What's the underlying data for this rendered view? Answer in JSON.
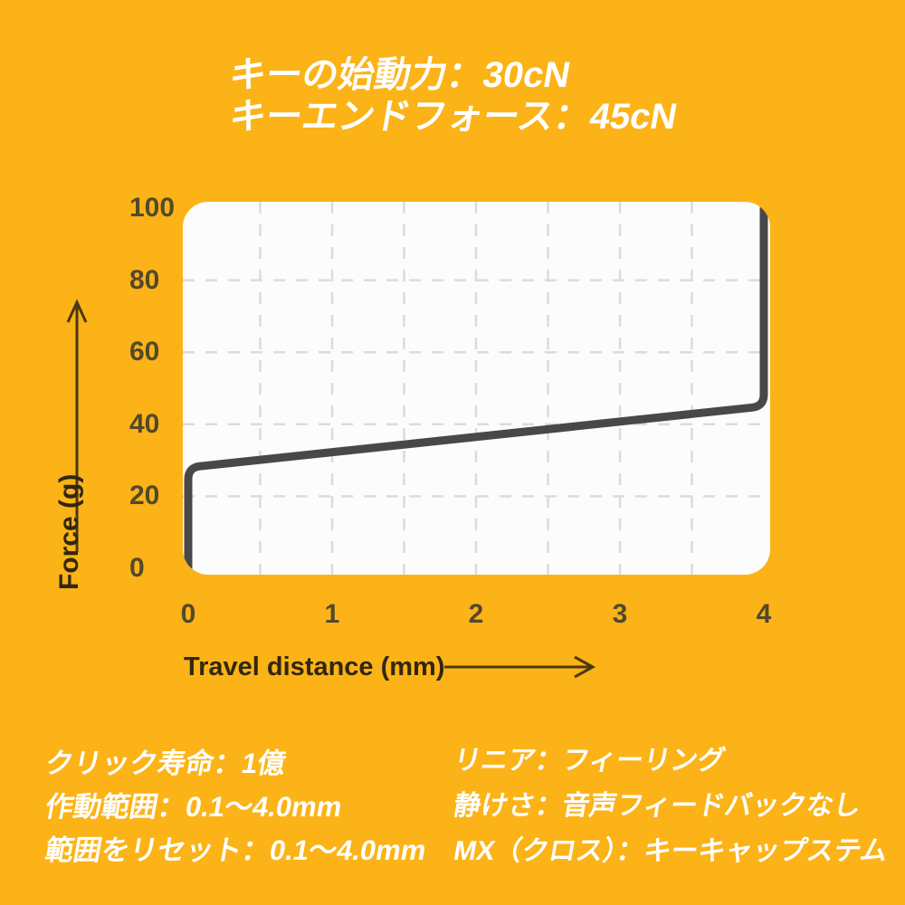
{
  "title": {
    "line1": "キーの始動力：30cN",
    "line2": "キーエンドフォース：45cN"
  },
  "chart_data": {
    "type": "line",
    "xlabel": "Travel distance (mm)",
    "ylabel": "Force (g)",
    "xlim": [
      0,
      4
    ],
    "ylim": [
      0,
      100
    ],
    "x_ticks": [
      0,
      1,
      2,
      3,
      4
    ],
    "y_ticks": [
      0,
      20,
      40,
      60,
      80,
      100
    ],
    "grid": {
      "x_start": 0.5,
      "x_step": 0.5,
      "x_end": 3.5,
      "y_start": 20,
      "y_step": 20,
      "y_end": 80,
      "style": "dashed"
    },
    "legend": "none",
    "series": [
      {
        "name": "force-travel-curve",
        "points": [
          [
            0,
            0
          ],
          [
            0,
            28
          ],
          [
            4,
            45
          ],
          [
            4,
            100
          ]
        ],
        "meaning": "linear switch: ~28g after preload at 0mm, rises linearly to 45g at 4mm, bottom-out spike to 100g"
      }
    ],
    "annotations": {
      "actuation_force": "30cN",
      "end_force": "45cN"
    }
  },
  "specs_left": {
    "line1": "クリック寿命：1億",
    "line2": "作動範囲：0.1～4.0mm",
    "line3": "範囲をリセット：0.1～4.0mm"
  },
  "specs_right": {
    "line1": "リニア：フィーリング",
    "line2": "静けさ：音声フィードバックなし",
    "line3": "MX（クロス）：キーキャップステム"
  },
  "colors": {
    "background": "#FBB317",
    "panel": "#FCFCFC",
    "curve": "#484848",
    "grid": "#DBDBDB",
    "tick_text": "#55482A",
    "axis_text": "#32270F",
    "title_text": "#FFFFFF"
  }
}
